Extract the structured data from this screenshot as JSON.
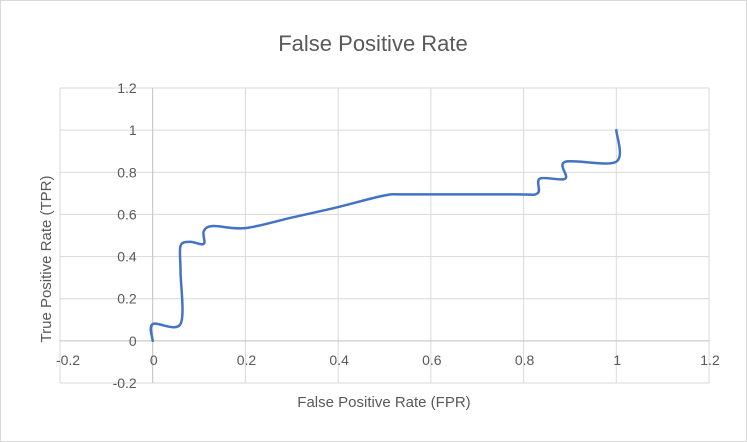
{
  "chart_data": {
    "type": "scatter",
    "title": "False Positive Rate",
    "xlabel": "False Positive Rate (FPR)",
    "ylabel": "True Positive Rate (TPR)",
    "xlim": [
      -0.2,
      1.2
    ],
    "ylim": [
      -0.2,
      1.2
    ],
    "x_ticks": [
      "-0.2",
      "0",
      "0.2",
      "0.4",
      "0.6",
      "0.8",
      "1",
      "1.2"
    ],
    "y_ticks": [
      "-0.2",
      "0",
      "0.2",
      "0.4",
      "0.6",
      "0.8",
      "1",
      "1.2"
    ],
    "grid": true,
    "legend": "none",
    "series": [
      {
        "color": "#4472c4",
        "points": [
          [
            0,
            0
          ],
          [
            0,
            0.08
          ],
          [
            0.06,
            0.08
          ],
          [
            0.06,
            0.33
          ],
          [
            0.06,
            0.45
          ],
          [
            0.08,
            0.47
          ],
          [
            0.11,
            0.46
          ],
          [
            0.11,
            0.52
          ],
          [
            0.13,
            0.545
          ],
          [
            0.2,
            0.535
          ],
          [
            0.3,
            0.585
          ],
          [
            0.4,
            0.635
          ],
          [
            0.5,
            0.69
          ],
          [
            0.55,
            0.695
          ],
          [
            0.78,
            0.695
          ],
          [
            0.83,
            0.7
          ],
          [
            0.835,
            0.77
          ],
          [
            0.89,
            0.77
          ],
          [
            0.89,
            0.85
          ],
          [
            1.0,
            0.85
          ],
          [
            1.0,
            1.0
          ]
        ]
      }
    ]
  }
}
